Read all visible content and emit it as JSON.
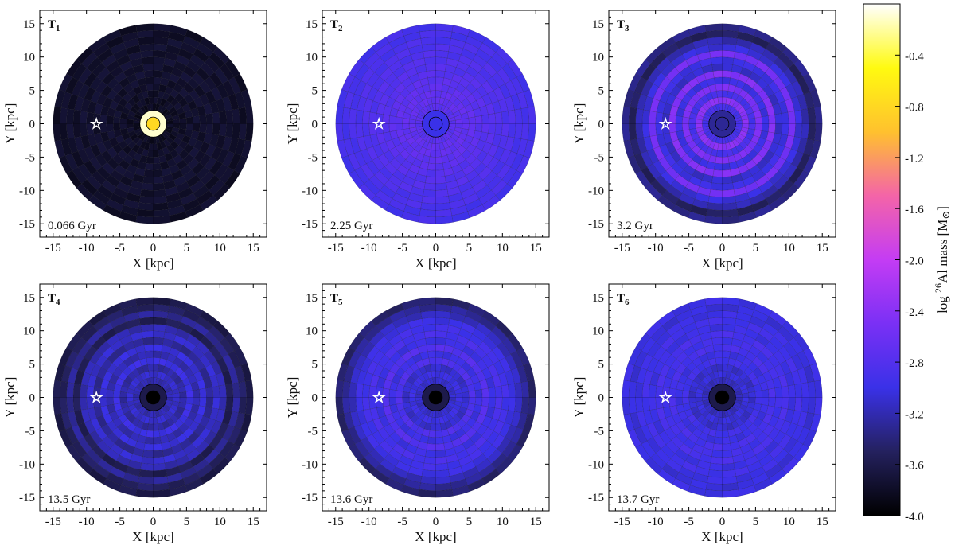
{
  "chart_data": {
    "type": "heatmap",
    "layout": "2x3 grid of polar-binned galactic disk maps with shared colorbar",
    "colorbar": {
      "label_pre": "log ",
      "label_sup": "26",
      "label_mid": "Al mass [M",
      "label_sym": "⊙",
      "label_end": "]",
      "ticks": [
        -0.4,
        -0.8,
        -1.2,
        -1.6,
        -2.0,
        -2.4,
        -2.8,
        -3.2,
        -3.6,
        -4.0
      ],
      "tick_labels": [
        "-0.4",
        "-0.8",
        "-1.2",
        "-1.6",
        "-2.0",
        "-2.4",
        "-2.8",
        "-3.2",
        "-3.6",
        "-4.0"
      ],
      "range": [
        -4.0,
        0.0
      ],
      "colors": [
        "#000000",
        "#24215e",
        "#3a31e8",
        "#7a30f5",
        "#c43cf4",
        "#f464a8",
        "#ffc12e",
        "#fffa10",
        "#ffffff"
      ]
    },
    "axes": {
      "xlabel": "X [kpc]",
      "ylabel": "Y [kpc]",
      "xlim": [
        -17,
        17
      ],
      "ylim": [
        -17,
        17
      ],
      "xticks": [
        -15,
        -10,
        -5,
        0,
        5,
        10,
        15
      ],
      "yticks": [
        -15,
        -10,
        -5,
        0,
        5,
        10,
        15
      ],
      "tick_labels": [
        "-15",
        "-10",
        "-5",
        "0",
        "5",
        "10",
        "15"
      ],
      "grid": false
    },
    "disk": {
      "outer_radius_kpc": 15,
      "n_rings": 15,
      "n_sectors": 36
    },
    "sun_marker": {
      "x": -8.5,
      "y": 0,
      "symbol": "☆"
    },
    "panels": [
      {
        "id": "T1",
        "label_letter": "T",
        "label_sub": "1",
        "time": "0.066 Gyr",
        "rings": [
          -0.4,
          -3.85,
          -3.82,
          -3.8,
          -3.78,
          -3.77,
          -3.76,
          -3.75,
          -3.75,
          -3.75,
          -3.75,
          -3.76,
          -3.76,
          -3.77,
          -3.78
        ],
        "center": {
          "inner_value": -0.8,
          "inner_r": 1.0,
          "outer_value": -0.1,
          "outer_r": 2.0
        }
      },
      {
        "id": "T2",
        "label_letter": "T",
        "label_sub": "2",
        "time": "2.25 Gyr",
        "rings": [
          -3.2,
          -2.85,
          -2.75,
          -2.7,
          -2.7,
          -2.72,
          -2.75,
          -2.78,
          -2.8,
          -2.82,
          -2.84,
          -2.86,
          -2.88,
          -2.9,
          -2.92
        ],
        "center": {
          "inner_value": -3.0,
          "inner_r": 1.0,
          "outer_value": -3.0,
          "outer_r": 2.0
        }
      },
      {
        "id": "T3",
        "label_letter": "T",
        "label_sub": "3",
        "time": "3.2 Gyr",
        "rings": [
          -3.3,
          -3.0,
          -2.9,
          -2.4,
          -2.9,
          -2.5,
          -3.0,
          -2.45,
          -3.1,
          -3.0,
          -2.55,
          -3.05,
          -3.2,
          -3.5,
          -3.35
        ],
        "center": {
          "inner_value": -3.3,
          "inner_r": 1.0,
          "outer_value": -3.3,
          "outer_r": 2.0
        }
      },
      {
        "id": "T4",
        "label_letter": "T",
        "label_sub": "4",
        "time": "13.5 Gyr",
        "rings": [
          -3.8,
          -3.3,
          -3.2,
          -3.1,
          -3.25,
          -3.0,
          -3.2,
          -3.05,
          -3.3,
          -3.1,
          -3.2,
          -3.55,
          -3.3,
          -3.5,
          -3.6
        ],
        "center": {
          "inner_value": -4.0,
          "inner_r": 1.0,
          "outer_value": -3.6,
          "outer_r": 2.0
        }
      },
      {
        "id": "T5",
        "label_letter": "T",
        "label_sub": "5",
        "time": "13.6 Gyr",
        "rings": [
          -3.8,
          -3.25,
          -3.1,
          -3.0,
          -3.1,
          -2.85,
          -3.0,
          -2.8,
          -3.0,
          -2.9,
          -2.95,
          -3.0,
          -3.15,
          -3.3,
          -3.45
        ],
        "center": {
          "inner_value": -4.0,
          "inner_r": 1.0,
          "outer_value": -3.6,
          "outer_r": 2.0
        }
      },
      {
        "id": "T6",
        "label_letter": "T",
        "label_sub": "6",
        "time": "13.7 Gyr",
        "rings": [
          -3.8,
          -3.25,
          -3.15,
          -3.05,
          -3.1,
          -2.95,
          -3.0,
          -2.9,
          -2.95,
          -2.9,
          -3.0,
          -2.95,
          -3.0,
          -3.05,
          -3.0
        ],
        "center": {
          "inner_value": -4.0,
          "inner_r": 1.0,
          "outer_value": -3.6,
          "outer_r": 2.0
        }
      }
    ]
  }
}
